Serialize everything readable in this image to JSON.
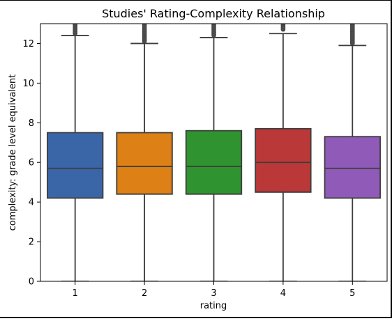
{
  "chart_data": {
    "type": "box",
    "title": "Studies' Rating-Complexity Relationship",
    "xlabel": "rating",
    "ylabel": "complexity: grade level equivalent",
    "categories": [
      "1",
      "2",
      "3",
      "4",
      "5"
    ],
    "ylim": [
      0,
      13
    ],
    "yticks": [
      0,
      2,
      4,
      6,
      8,
      10,
      12
    ],
    "grid": false,
    "legend": "none",
    "boxes": [
      {
        "category": "1",
        "whisker_low": 0,
        "q1": 4.2,
        "median": 5.7,
        "q3": 7.5,
        "whisker_high": 12.4,
        "fliers_from": 12.5,
        "color": "#3a66a8"
      },
      {
        "category": "2",
        "whisker_low": 0,
        "q1": 4.4,
        "median": 5.8,
        "q3": 7.5,
        "whisker_high": 12.0,
        "fliers_from": 12.1,
        "color": "#dd8015"
      },
      {
        "category": "3",
        "whisker_low": 0,
        "q1": 4.4,
        "median": 5.8,
        "q3": 7.6,
        "whisker_high": 12.3,
        "fliers_from": 12.4,
        "color": "#2f942f"
      },
      {
        "category": "4",
        "whisker_low": 0,
        "q1": 4.5,
        "median": 6.0,
        "q3": 7.7,
        "whisker_high": 12.5,
        "fliers_from": 12.7,
        "color": "#bb3838"
      },
      {
        "category": "5",
        "whisker_low": 0,
        "q1": 4.2,
        "median": 5.7,
        "q3": 7.3,
        "whisker_high": 11.9,
        "fliers_from": 12.0,
        "color": "#8f5ab8"
      }
    ]
  }
}
